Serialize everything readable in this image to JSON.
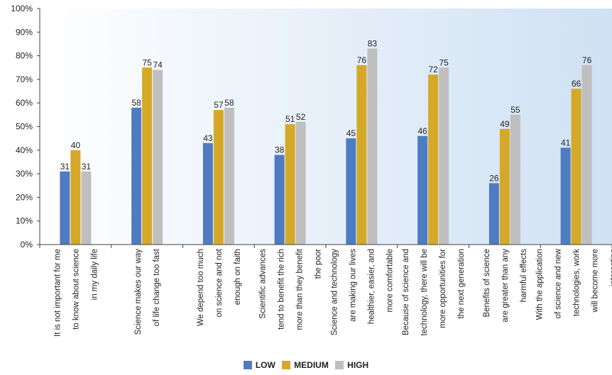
{
  "colors": {
    "low": "#4f7cc1",
    "medium": "#d4a829",
    "high": "#bfbfbf"
  },
  "chart_data": {
    "type": "bar",
    "yticks": [
      "0%",
      "10%",
      "20%",
      "30%",
      "40%",
      "50%",
      "60%",
      "70%",
      "80%",
      "90%",
      "100%"
    ],
    "ylim": [
      0,
      100
    ],
    "categories": [
      [
        "It is not important for me",
        "to know about science",
        "in my  daily life"
      ],
      [
        "Science makes our way",
        "of life change too fast"
      ],
      [
        "We depend too much",
        "on science and not",
        "enough on faith"
      ],
      [
        "Scientific advances",
        "tend to benefit the rich",
        "more than they benefit",
        "the poor"
      ],
      [
        "Science and technology",
        "are making our lives",
        "healthier, easier, and",
        "more comfortable"
      ],
      [
        "Because of science and",
        "technology, there will be",
        "more opportunities for",
        "the next generation"
      ],
      [
        "Benefits of science",
        "are greater than any",
        "harmful effects"
      ],
      [
        "With the application",
        "of science and new",
        "technologies, work",
        "will become more",
        "interesting"
      ]
    ],
    "series": [
      {
        "name": "LOW",
        "values": [
          31,
          58,
          43,
          38,
          45,
          46,
          26,
          41
        ]
      },
      {
        "name": "MEDIUM",
        "values": [
          40,
          75,
          57,
          51,
          76,
          72,
          49,
          66
        ]
      },
      {
        "name": "HIGH",
        "values": [
          31,
          74,
          58,
          52,
          83,
          75,
          55,
          76
        ]
      }
    ],
    "legend": "bottom-center",
    "grid": false
  }
}
